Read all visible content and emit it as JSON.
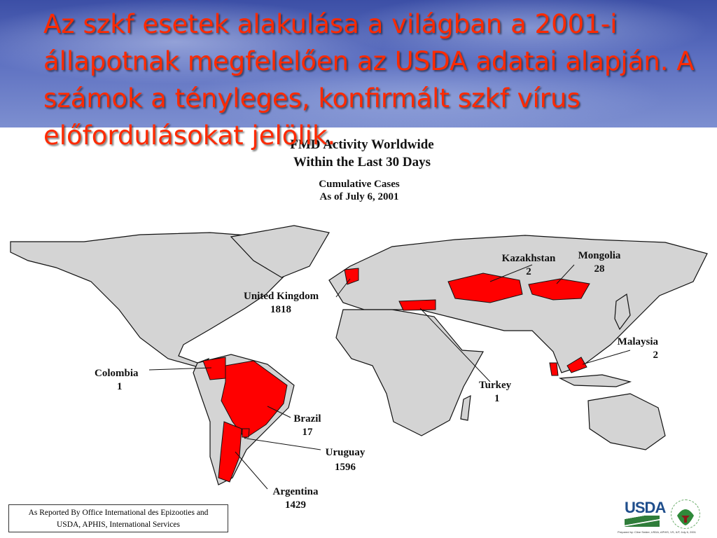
{
  "slide": {
    "title": "Az szkf esetek alakulása a világban a 2001-i állapotnak megfelelően az USDA adatai alapján. A számok a tényleges, konfirmált szkf vírus előfordulásokat jelölik."
  },
  "map": {
    "heading_line1": "FMD Activity Worldwide",
    "heading_line2": "Within the Last 30 Days",
    "subheading_line1": "Cumulative Cases",
    "subheading_line2": "As of July 6, 2001",
    "colors": {
      "affected": "#ff0000",
      "land": "#d4d4d4",
      "border": "#111111"
    },
    "countries": [
      {
        "name": "United Kingdom",
        "cases": "1818"
      },
      {
        "name": "Kazakhstan",
        "cases": "2"
      },
      {
        "name": "Mongolia",
        "cases": "28"
      },
      {
        "name": "Malaysia",
        "cases": "2"
      },
      {
        "name": "Turkey",
        "cases": "1"
      },
      {
        "name": "Colombia",
        "cases": "1"
      },
      {
        "name": "Brazil",
        "cases": "17"
      },
      {
        "name": "Uruguay",
        "cases": "1596"
      },
      {
        "name": "Argentina",
        "cases": "1429"
      }
    ],
    "source_line1": "As Reported By Office International des Epizooties and",
    "source_line2": "USDA, APHIS, International Services"
  },
  "logos": {
    "usda": "USDA",
    "prepared_by": "Prepared by: Cline Snider, USDA, APHIS, VS, ILP, July 6, 2001"
  }
}
